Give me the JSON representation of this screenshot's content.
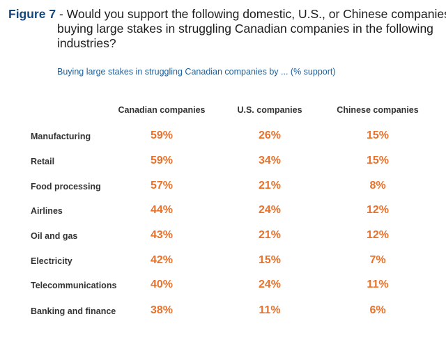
{
  "title": {
    "figure_label": "Figure 7",
    "line1": " - Would you support the following domestic, U.S., or Chinese companies",
    "rest": "buying large stakes in struggling Canadian companies in the following industries?"
  },
  "colors": {
    "value": "#e8722b",
    "figure_label": "#14487a",
    "subtitle": "#1f5f99"
  },
  "chart_data": {
    "type": "table",
    "title": "Buying large stakes in struggling Canadian companies by ... (% support)",
    "columns": [
      "Canadian companies",
      "U.S. companies",
      "Chinese companies"
    ],
    "rows": [
      {
        "label": "Manufacturing",
        "values": [
          "59%",
          "26%",
          "15%"
        ]
      },
      {
        "label": "Retail",
        "values": [
          "59%",
          "34%",
          "15%"
        ]
      },
      {
        "label": "Food processing",
        "values": [
          "57%",
          "21%",
          "8%"
        ]
      },
      {
        "label": "Airlines",
        "values": [
          "44%",
          "24%",
          "12%"
        ]
      },
      {
        "label": "Oil and gas",
        "values": [
          "43%",
          "21%",
          "12%"
        ]
      },
      {
        "label": "Electricity",
        "values": [
          "42%",
          "15%",
          "7%"
        ]
      },
      {
        "label": "Telecommunications",
        "values": [
          "40%",
          "24%",
          "11%"
        ]
      },
      {
        "label": "Banking and finance",
        "values": [
          "38%",
          "11%",
          "6%"
        ]
      }
    ]
  }
}
